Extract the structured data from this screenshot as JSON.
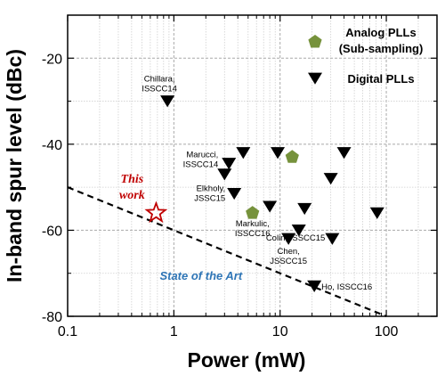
{
  "chart_data": {
    "type": "scatter",
    "xlabel": "Power (mW)",
    "ylabel": "In-band spur level (dBc)",
    "x_scale": "log",
    "xlim": [
      0.1,
      300
    ],
    "ylim": [
      -80,
      -10
    ],
    "x_ticks": [
      0.1,
      1,
      10,
      100
    ],
    "x_tick_labels": [
      "0.1",
      "1",
      "10",
      "100"
    ],
    "y_ticks": [
      -20,
      -40,
      -60,
      -80
    ],
    "y_tick_labels": [
      "-20",
      "-40",
      "-60",
      "-80"
    ],
    "grid": true,
    "legend_position": "top-right",
    "colors": {
      "analog": "#76923c",
      "digital": "#000000",
      "this_work": "#c00000",
      "state_of_art": "#2e75b6",
      "axis": "#000000"
    },
    "series": [
      {
        "name": "Analog PLLs\n(Sub-sampling)",
        "legend_lines": [
          "Analog PLLs",
          "(Sub-sampling)"
        ],
        "marker": "pentagon",
        "points": [
          {
            "x": 5.5,
            "y": -56,
            "label_lines": [
              "Markulic,",
              "ISSCC16"
            ]
          },
          {
            "x": 13,
            "y": -43
          }
        ]
      },
      {
        "name": "Digital PLLs",
        "legend_lines": [
          "Digital PLLs"
        ],
        "marker": "triangle-down",
        "points": [
          {
            "x": 0.87,
            "y": -30,
            "label_lines": [
              "Chillara,",
              "ISSCC14"
            ]
          },
          {
            "x": 3.0,
            "y": -47
          },
          {
            "x": 3.3,
            "y": -44.5,
            "label_lines": [
              "Marucci,",
              "ISSCC14"
            ]
          },
          {
            "x": 3.7,
            "y": -51.5,
            "label_lines": [
              "Elkholy,",
              "JSSC15"
            ]
          },
          {
            "x": 4.5,
            "y": -42
          },
          {
            "x": 8.0,
            "y": -54.5
          },
          {
            "x": 9.5,
            "y": -42
          },
          {
            "x": 12,
            "y": -62,
            "label_lines": [
              "Chen,",
              "JSSCC15"
            ]
          },
          {
            "x": 15,
            "y": -60
          },
          {
            "x": 17,
            "y": -55
          },
          {
            "x": 21,
            "y": -73,
            "label_lines": [
              "Ho, ISSCC16"
            ]
          },
          {
            "x": 30,
            "y": -48
          },
          {
            "x": 31,
            "y": -62,
            "label_lines": [
              "Colin, ISSCC15"
            ]
          },
          {
            "x": 40,
            "y": -42
          },
          {
            "x": 82,
            "y": -56
          }
        ]
      },
      {
        "name": "This work",
        "marker": "star",
        "points": [
          {
            "x": 0.68,
            "y": -56,
            "label_lines": [
              "This",
              "work"
            ]
          }
        ]
      }
    ],
    "trend_line": {
      "label": "State of the Art",
      "style": "dashed",
      "points": [
        {
          "x": 0.1,
          "y": -50
        },
        {
          "x": 100,
          "y": -80
        }
      ]
    }
  }
}
